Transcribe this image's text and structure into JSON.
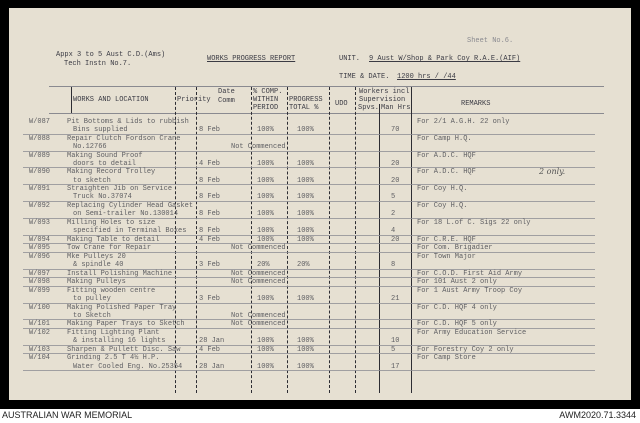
{
  "header": {
    "sheet": "Sheet No.6.",
    "appx_line1": "Appx 3 to 5 Aust C.D.(Ams)",
    "appx_line2": "Tech Instn No.7.",
    "title": "WORKS PROGRESS REPORT",
    "unit_label": "UNIT.",
    "unit_value": "9 Aust W/Shop & Park Coy R.A.E.(AIF)",
    "time_label": "TIME & DATE.",
    "time_value": "1200 hrs   /  /44"
  },
  "columns": {
    "works": "WORKS AND LOCATION",
    "priority": "Priority",
    "date_comm_1": "Date",
    "date_comm_2": "Comm",
    "pct_1": "% COMP.",
    "pct_2": "WITHIN",
    "pct_3": "PERIOD",
    "progress_1": "PROGRESS",
    "progress_2": "TOTAL %",
    "udo": "UDO",
    "workers_1": "Workers incl.",
    "workers_2": "Supervision",
    "workers_spvs": "Spvs.",
    "workers_man": "Man Hrs",
    "remarks": "REMARKS"
  },
  "rows": [
    {
      "code": "W/087",
      "desc": [
        "Pit Bottoms & Lids to rubbish",
        "Bins supplied"
      ],
      "date": "8 Feb",
      "pct": "100%",
      "total": "100%",
      "hrs": "70",
      "remarks": "For 2/1 A.G.H.  22 only"
    },
    {
      "code": "W/088",
      "desc": [
        "Repair Clutch Fordson Crane",
        "No.12766"
      ],
      "status": "Not Commenced",
      "remarks": "For Camp H.Q."
    },
    {
      "code": "W/089",
      "desc": [
        "Making Sound Proof",
        "doors to detail"
      ],
      "date": "4 Feb",
      "pct": "100%",
      "total": "100%",
      "hrs": "20",
      "remarks": "For A.D.C. HQF"
    },
    {
      "code": "W/090",
      "desc": [
        "Making Record Trolley",
        "to sketch"
      ],
      "date": "8 Feb",
      "pct": "100%",
      "total": "100%",
      "hrs": "20",
      "remarks": "For A.D.C. HQF",
      "note": "2 only."
    },
    {
      "code": "W/091",
      "desc": [
        "Straighten Jib on Service",
        "Truck No.37074"
      ],
      "date": "8 Feb",
      "pct": "100%",
      "total": "100%",
      "hrs": "5",
      "remarks": "For Coy H.Q."
    },
    {
      "code": "W/092",
      "desc": [
        "Replacing Cylinder Head Gasket",
        "on Semi-trailer No.130014"
      ],
      "date": "8 Feb",
      "pct": "100%",
      "total": "100%",
      "hrs": "2",
      "remarks": "For Coy H.Q."
    },
    {
      "code": "W/093",
      "desc": [
        "Milling Holes to size",
        "specified in Terminal Boxes"
      ],
      "date": "8 Feb",
      "pct": "100%",
      "total": "100%",
      "hrs": "4",
      "remarks": "For 18 L.of C. Sigs  22 only"
    },
    {
      "code": "W/094",
      "desc": [
        "Making Table to detail"
      ],
      "date": "4 Feb",
      "pct": "100%",
      "total": "100%",
      "hrs": "20",
      "remarks": "For C.R.E. HQF"
    },
    {
      "code": "W/095",
      "desc": [
        "Tow Crane for Repair"
      ],
      "status": "Not Commenced",
      "remarks": "For Com. Brigadier"
    },
    {
      "code": "W/096",
      "desc": [
        "Mke Pulleys 20",
        "& spindle 40"
      ],
      "date": "3 Feb",
      "pct": "20%",
      "total": "20%",
      "hrs": "8",
      "remarks": "For Town Major"
    },
    {
      "code": "W/097",
      "desc": [
        "Install Polishing Machine"
      ],
      "status": "Not Commenced",
      "remarks": "For C.O.D. First Aid Army"
    },
    {
      "code": "W/098",
      "desc": [
        "Making Pulleys"
      ],
      "status": "Not Commenced",
      "remarks": "For 101 Aust  2 only"
    },
    {
      "code": "W/099",
      "desc": [
        "Fitting wooden centre",
        "to pulley"
      ],
      "date": "3 Feb",
      "pct": "100%",
      "total": "100%",
      "hrs": "21",
      "remarks": "For 1 Aust Army Troop Coy"
    },
    {
      "code": "W/100",
      "desc": [
        "Making Polished Paper Tray",
        "to Sketch"
      ],
      "status": "Not Commenced",
      "remarks": "For C.D. HQF  4 only"
    },
    {
      "code": "W/101",
      "desc": [
        "Making Paper Trays to Sketch"
      ],
      "status": "Not Commenced",
      "remarks": "For C.D. HQF  5 only"
    },
    {
      "code": "W/102",
      "desc": [
        "Fitting Lighting Plant",
        "& installing 16 lights"
      ],
      "date": "28 Jan",
      "pct": "100%",
      "total": "100%",
      "hrs": "10",
      "remarks": "For Army Education Service"
    },
    {
      "code": "W/103",
      "desc": [
        "Sharpen & Pullett Disc. Saw"
      ],
      "date": "4 Feb",
      "pct": "100%",
      "total": "100%",
      "hrs": "5",
      "remarks": "For Forestry Coy  2 only"
    },
    {
      "code": "W/104",
      "desc": [
        "Grinding 2.5 T 4½ H.P.",
        "Water Cooled Eng. No.25354"
      ],
      "date": "28 Jan",
      "pct": "100%",
      "total": "100%",
      "hrs": "17",
      "remarks": "For Camp Store"
    }
  ],
  "footer": {
    "left": "AUSTRALIAN WAR MEMORIAL",
    "right": "AWM2020.71.3344"
  },
  "colors": {
    "paper": "#e6e0d2",
    "ink": "#5e5e62",
    "frame": "#000000"
  }
}
